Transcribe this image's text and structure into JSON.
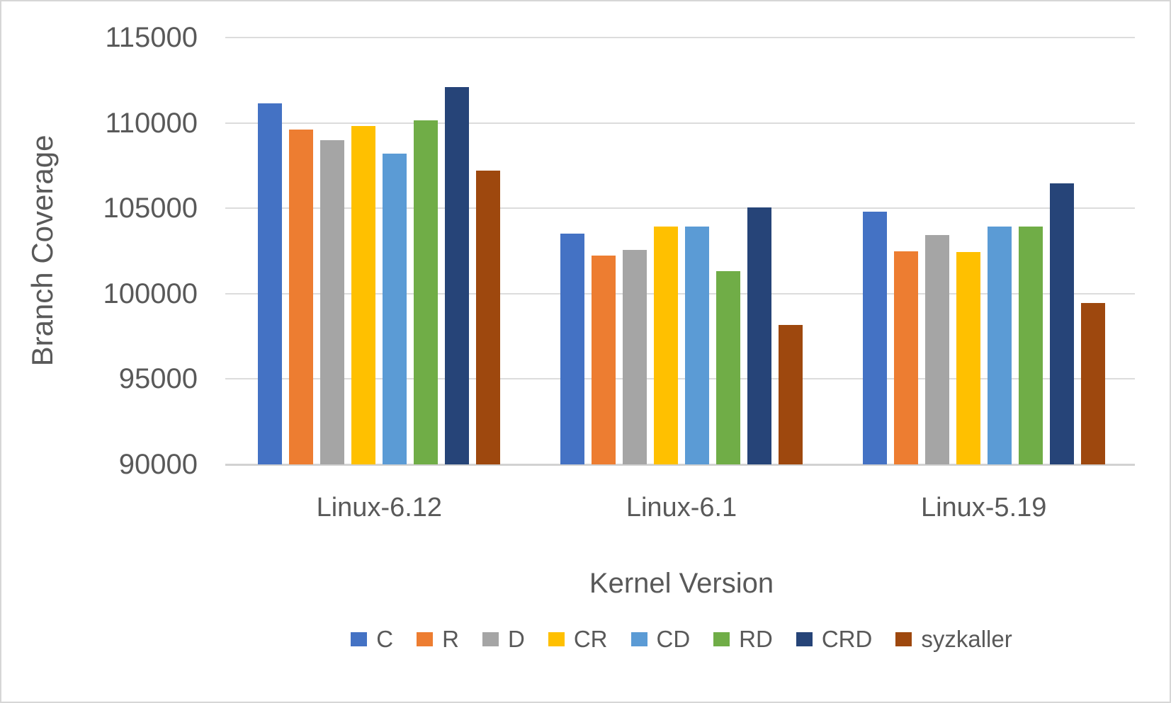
{
  "chart_data": {
    "type": "bar",
    "title": "",
    "xlabel": "Kernel Version",
    "ylabel": "Branch Coverage",
    "categories": [
      "Linux-6.12",
      "Linux-6.1",
      "Linux-5.19"
    ],
    "series": [
      {
        "name": "C",
        "color": "#4472C4",
        "values": [
          111150,
          103500,
          104800
        ]
      },
      {
        "name": "R",
        "color": "#ED7D31",
        "values": [
          109600,
          102250,
          102500
        ]
      },
      {
        "name": "D",
        "color": "#A5A5A5",
        "values": [
          109000,
          102550,
          103450
        ]
      },
      {
        "name": "CR",
        "color": "#FFC000",
        "values": [
          109800,
          103950,
          102450
        ]
      },
      {
        "name": "CD",
        "color": "#5B9BD5",
        "values": [
          108200,
          103950,
          103950
        ]
      },
      {
        "name": "RD",
        "color": "#70AD47",
        "values": [
          110150,
          101300,
          103950
        ]
      },
      {
        "name": "CRD",
        "color": "#264478",
        "values": [
          112100,
          105050,
          106450
        ]
      },
      {
        "name": "syzkaller",
        "color": "#9E480E",
        "values": [
          107200,
          98150,
          99450
        ]
      }
    ],
    "ylim": [
      90000,
      115000
    ],
    "yticks": [
      90000,
      95000,
      100000,
      105000,
      110000,
      115000
    ],
    "grid": true,
    "legend_position": "bottom"
  },
  "styles": {
    "text_color": "#595959",
    "grid_color": "#DCDCDC",
    "axis_line_color": "#D2D2D2",
    "background": "#FFFFFF"
  }
}
